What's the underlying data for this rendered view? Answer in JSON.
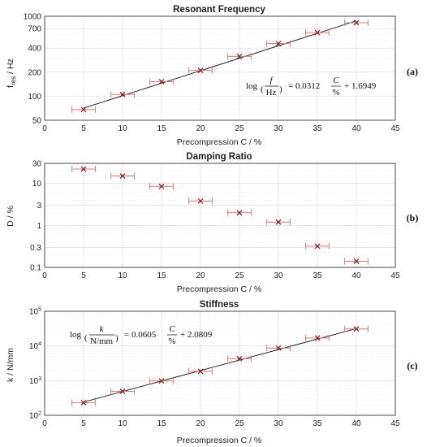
{
  "chart_data": [
    {
      "type": "scatter",
      "title": "Resonant Frequency",
      "xlabel": "Precompression C / %",
      "ylabel_main": "f",
      "ylabel_sub": "res",
      "ylabel_unit": " / Hz",
      "xlim": [
        0,
        45
      ],
      "ylim": [
        50,
        1000
      ],
      "yscale": "log",
      "xticks": [
        "0",
        "5",
        "10",
        "15",
        "20",
        "25",
        "30",
        "35",
        "40",
        "45"
      ],
      "yticks": [
        {
          "v": 50,
          "t": "50"
        },
        {
          "v": 100,
          "t": "100"
        },
        {
          "v": 200,
          "t": "200"
        },
        {
          "v": 400,
          "t": "400"
        },
        {
          "v": 700,
          "t": "700"
        },
        {
          "v": 1000,
          "t": "1000"
        }
      ],
      "grid": true,
      "panel_label": "(a)",
      "x_error": 1.5,
      "points": [
        {
          "x": 5,
          "y": 68
        },
        {
          "x": 10,
          "y": 105
        },
        {
          "x": 15,
          "y": 152
        },
        {
          "x": 20,
          "y": 210
        },
        {
          "x": 25,
          "y": 315
        },
        {
          "x": 30,
          "y": 455
        },
        {
          "x": 35,
          "y": 625
        },
        {
          "x": 40,
          "y": 830
        }
      ],
      "fit": {
        "slope": 0.0312,
        "intercept": 1.6949,
        "x_range": [
          5,
          40
        ]
      },
      "equation": {
        "var": "f",
        "unit": "Hz",
        "rhs_coef": "= 0.0312",
        "rhs_num": "C",
        "rhs_den": "%",
        "rhs_const": "+ 1.6949"
      }
    },
    {
      "type": "scatter",
      "title": "Damping Ratio",
      "xlabel": "Precompression C / %",
      "ylabel": "D / %",
      "xlim": [
        0,
        45
      ],
      "ylim": [
        0.1,
        30
      ],
      "yscale": "log",
      "xticks": [
        "0",
        "5",
        "10",
        "15",
        "20",
        "25",
        "30",
        "35",
        "40",
        "45"
      ],
      "yticks": [
        {
          "v": 0.1,
          "t": "0.1"
        },
        {
          "v": 0.3,
          "t": "0.3"
        },
        {
          "v": 1,
          "t": "1"
        },
        {
          "v": 3,
          "t": "3"
        },
        {
          "v": 10,
          "t": "10"
        },
        {
          "v": 30,
          "t": "30"
        }
      ],
      "grid": true,
      "panel_label": "(b)",
      "x_error": 1.5,
      "points": [
        {
          "x": 5,
          "y": 22
        },
        {
          "x": 10,
          "y": 15
        },
        {
          "x": 15,
          "y": 8.5
        },
        {
          "x": 20,
          "y": 3.8
        },
        {
          "x": 25,
          "y": 2.0
        },
        {
          "x": 30,
          "y": 1.2
        },
        {
          "x": 35,
          "y": 0.32
        },
        {
          "x": 40,
          "y": 0.14
        }
      ]
    },
    {
      "type": "scatter",
      "title": "Stiffness",
      "xlabel": "Precompression C / %",
      "ylabel": "k / N/mm",
      "xlim": [
        0,
        45
      ],
      "ylim": [
        100,
        100000
      ],
      "yscale": "log",
      "xticks": [
        "0",
        "5",
        "10",
        "15",
        "20",
        "25",
        "30",
        "35",
        "40",
        "45"
      ],
      "yticks": [
        {
          "v": 100,
          "t": "10",
          "sup": "2"
        },
        {
          "v": 1000,
          "t": "10",
          "sup": "3"
        },
        {
          "v": 10000,
          "t": "10",
          "sup": "4"
        },
        {
          "v": 100000,
          "t": "10",
          "sup": "5"
        }
      ],
      "grid": true,
      "panel_label": "(c)",
      "x_error": 1.5,
      "points": [
        {
          "x": 5,
          "y": 230
        },
        {
          "x": 10,
          "y": 490
        },
        {
          "x": 15,
          "y": 980
        },
        {
          "x": 20,
          "y": 1850
        },
        {
          "x": 25,
          "y": 4300
        },
        {
          "x": 30,
          "y": 8700
        },
        {
          "x": 35,
          "y": 17000
        },
        {
          "x": 40,
          "y": 31000
        }
      ],
      "fit": {
        "slope": 0.0605,
        "intercept": 2.0809,
        "x_range": [
          5,
          40
        ]
      },
      "equation": {
        "var": "k",
        "unit": "N/mm",
        "rhs_coef": "= 0.0605",
        "rhs_num": "C",
        "rhs_den": "%",
        "rhs_const": "+ 2.0809"
      }
    }
  ],
  "colors": {
    "marker": "#8b1a1a",
    "errorbar": "#e07a7a",
    "fit_line": "#111111",
    "grid": "#d8d8d8",
    "axis": "#222222"
  }
}
